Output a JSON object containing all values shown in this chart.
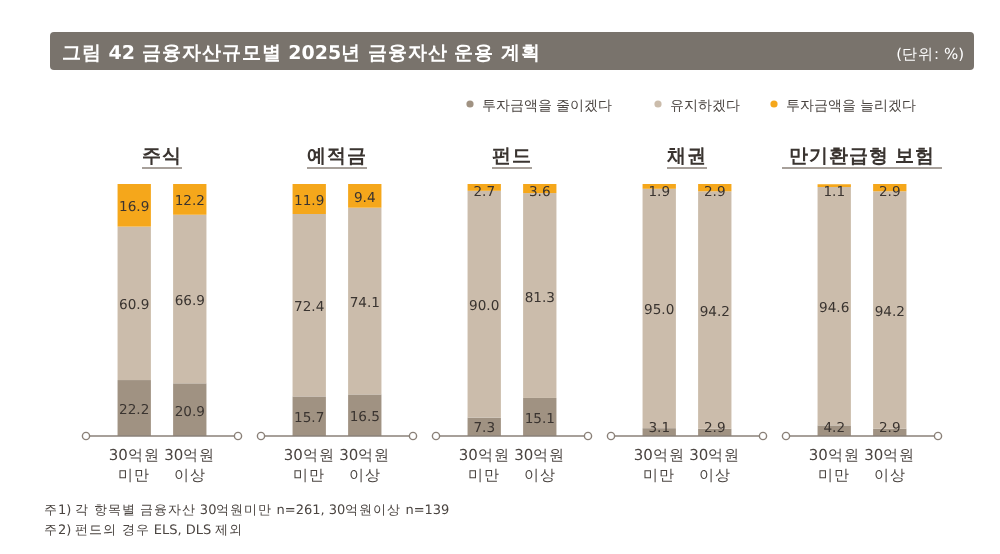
{
  "chart_data": [
    {
      "type": "bar",
      "title": "주식",
      "stacked": true,
      "data_labels": true,
      "legend": "top right",
      "categories": [
        "30억원 미만",
        "30억원 이상"
      ],
      "annotations": [
        "그림 42  금융자산규모별 2025년 금융자산 운용 계획",
        "(단위: %)",
        "주1) 각 항목별 금융자산 30억원미만 n=261, 30억원이상 n=139",
        "주2) 펀드의 경우 ELS, DLS 제외"
      ],
      "series": [
        {
          "name": "투자금액을 줄이겠다",
          "color": "#a09282",
          "values": [
            22.2,
            20.9
          ]
        },
        {
          "name": "유지하겠다",
          "color": "#cbbcab",
          "values": [
            60.9,
            66.9
          ]
        },
        {
          "name": "투자금액을 늘리겠다",
          "color": "#f5a71b",
          "values": [
            16.9,
            12.2
          ]
        }
      ]
    },
    {
      "type": "bar",
      "title": "예적금",
      "stacked": true,
      "data_labels": true,
      "categories": [
        "30억원 미만",
        "30억원 이상"
      ],
      "series": [
        {
          "color": "#a09282",
          "values": [
            15.7,
            16.5
          ]
        },
        {
          "color": "#cbbcab",
          "values": [
            72.4,
            74.1
          ]
        },
        {
          "color": "#f5a71b",
          "values": [
            11.9,
            9.4
          ]
        }
      ]
    },
    {
      "type": "bar",
      "title": "펀드",
      "stacked": true,
      "data_labels": true,
      "categories": [
        "30억원 미만",
        "30억원 이상"
      ],
      "series": [
        {
          "color": "#a09282",
          "values": [
            7.3,
            15.1
          ]
        },
        {
          "color": "#cbbcab",
          "values": [
            90.0,
            81.3
          ],
          "value_labels": [
            "90.0",
            "81.3"
          ]
        },
        {
          "color": "#f5a71b",
          "values": [
            2.7,
            3.6
          ]
        }
      ]
    },
    {
      "type": "bar",
      "title": "채권",
      "stacked": true,
      "data_labels": true,
      "categories": [
        "30억원 미만",
        "30억원 이상"
      ],
      "series": [
        {
          "color": "#a09282",
          "values": [
            3.1,
            2.9
          ]
        },
        {
          "color": "#cbbcab",
          "values": [
            95.0,
            94.2
          ],
          "value_labels": [
            "95.0",
            "94.2"
          ]
        },
        {
          "color": "#f5a71b",
          "values": [
            1.9,
            2.9
          ]
        }
      ]
    },
    {
      "type": "bar",
      "title": "만기환급형 보험",
      "stacked": true,
      "data_labels": true,
      "categories": [
        "30억원 미만",
        "30억원 이상"
      ],
      "series": [
        {
          "color": "#a09282",
          "values": [
            4.2,
            2.9
          ]
        },
        {
          "color": "#cbbcab",
          "values": [
            94.6,
            94.2
          ]
        },
        {
          "color": "#f5a71b",
          "values": [
            1.1,
            2.9
          ]
        }
      ]
    }
  ]
}
